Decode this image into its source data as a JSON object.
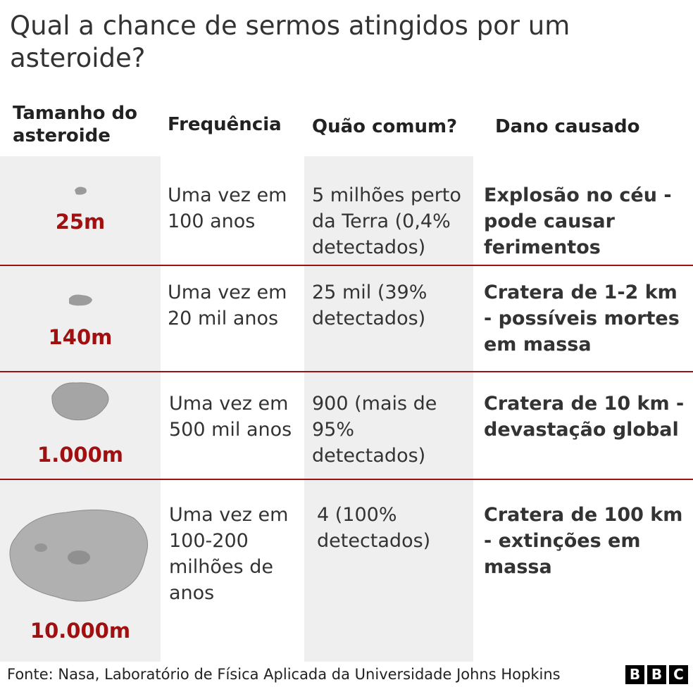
{
  "header": {
    "title": "Qual a chance de sermos atingidos por um asteroide?"
  },
  "table": {
    "columns": [
      "Tamanho do asteroide",
      "Frequência",
      "Quão comum?",
      "Dano causado"
    ],
    "rows": [
      [
        "25m",
        "Uma vez em 100 anos",
        "5 milhões perto da Terra (0,4% detectados)",
        "Explosão no céu - pode causar ferimentos"
      ],
      [
        "140m",
        "Uma vez em 20 mil anos",
        "25 mil (39% detectados)",
        "Cratera de 1-2 km - possíveis mortes em massa"
      ],
      [
        "1.000m",
        "Uma vez em 500 mil anos",
        "900 (mais de 95% detectados)",
        "Cratera de 10 km - devastação global"
      ],
      [
        "10.000m",
        "Uma vez em 100-200 milhões de anos",
        "4 (100% detectados)",
        "Cratera de 100 km - extinções em massa"
      ]
    ]
  },
  "footer": {
    "source": "Fonte: Nasa, Laboratório de Física Aplicada da Universidade Johns Hopkins",
    "logo": [
      "B",
      "B",
      "C"
    ]
  }
}
